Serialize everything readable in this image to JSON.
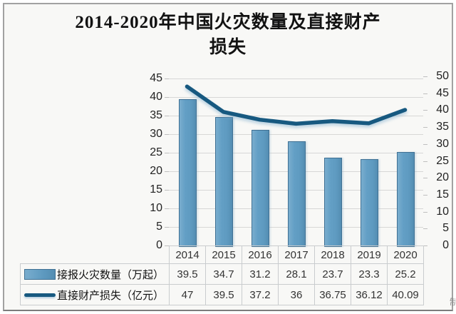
{
  "title": {
    "line1": "2014-2020年中国火灾数量及直接财产",
    "line2": "损失"
  },
  "chart_data": {
    "type": "combo",
    "title": "2014-2020年中国火灾数量及直接财产损失",
    "categories": [
      "2014",
      "2015",
      "2016",
      "2017",
      "2018",
      "2019",
      "2020"
    ],
    "series": [
      {
        "name": "接报火灾数量（万起）",
        "type": "bar",
        "axis": "left",
        "values": [
          39.5,
          34.7,
          31.2,
          28.1,
          23.7,
          23.3,
          25.2
        ],
        "color": "#5e9ac0"
      },
      {
        "name": "直接财产损失（亿元）",
        "type": "line",
        "axis": "right",
        "values": [
          47,
          39.5,
          37.2,
          36,
          36.75,
          36.12,
          40.09
        ],
        "color": "#175980"
      }
    ],
    "left_axis": {
      "min": 0,
      "max": 45,
      "step": 5,
      "ticks": [
        "45",
        "40",
        "35",
        "30",
        "25",
        "20",
        "15",
        "10",
        "5",
        "0"
      ]
    },
    "right_axis": {
      "min": 0,
      "max": 50,
      "step": 5,
      "ticks": [
        "50",
        "45",
        "40",
        "35",
        "30",
        "25",
        "20",
        "15",
        "10",
        "5",
        "0"
      ]
    },
    "grid": true,
    "legend_position": "bottom-table"
  },
  "table": {
    "rows": [
      {
        "label": "接报火灾数量（万起）",
        "swatch": "bar",
        "values": [
          "39.5",
          "34.7",
          "31.2",
          "28.1",
          "23.7",
          "23.3",
          "25.2"
        ]
      },
      {
        "label": "直接财产损失（亿元）",
        "swatch": "line",
        "values": [
          "47",
          "39.5",
          "37.2",
          "36",
          "36.75",
          "36.12",
          "40.09"
        ]
      }
    ]
  },
  "colors": {
    "bar_fill": "#5e9ac0",
    "bar_border": "#3f7093",
    "line": "#175980",
    "gridline": "#d7d7d6",
    "table_border": "#c9ccce",
    "background": "#f8f8f6",
    "frame_border": "#a2a2a2"
  },
  "watermark_fragment": "制"
}
